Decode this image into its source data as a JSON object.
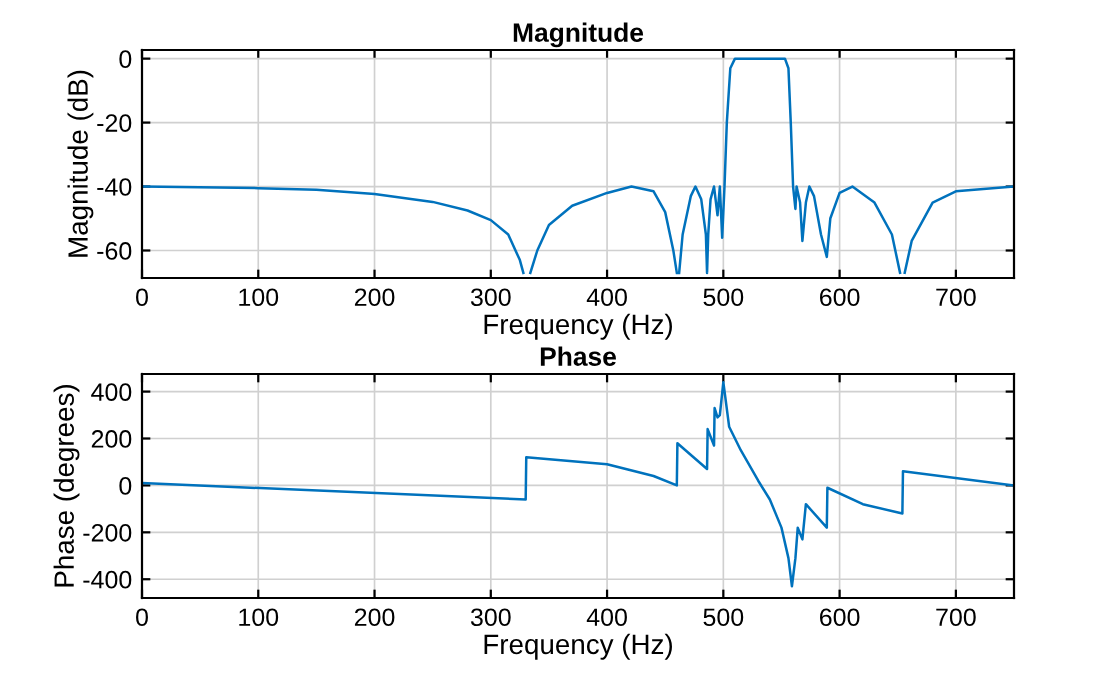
{
  "chart_data": [
    {
      "type": "line",
      "title": "Magnitude",
      "xlabel": "Frequency (Hz)",
      "ylabel": "Magnitude (dB)",
      "xlim": [
        0,
        750
      ],
      "ylim": [
        -68.6,
        2.7
      ],
      "xticks": [
        0,
        100,
        200,
        300,
        400,
        500,
        600,
        700
      ],
      "yticks": [
        -60,
        -40,
        -20,
        0
      ],
      "grid": true,
      "series": [
        {
          "color": "#0072bd",
          "x": [
            0,
            100,
            150,
            200,
            250,
            280,
            300,
            315,
            325,
            328,
            330,
            334,
            340,
            350,
            370,
            400,
            421,
            440,
            450,
            457,
            460,
            461,
            462,
            465,
            472,
            476,
            481,
            485,
            486,
            487,
            489,
            492,
            495,
            497,
            499,
            501,
            503,
            506,
            510,
            553,
            556,
            558,
            560,
            562,
            563,
            566,
            568,
            571,
            574,
            578,
            584,
            589,
            592,
            600,
            611,
            630,
            645,
            652,
            654,
            656,
            662,
            680,
            700,
            750
          ],
          "values": [
            -40,
            -40.5,
            -41,
            -42.3,
            -44.8,
            -47.5,
            -50.5,
            -55,
            -63,
            -67,
            null,
            -67,
            -60,
            -52,
            -46,
            -42,
            -40,
            -41.5,
            -48,
            -60,
            -67,
            null,
            -67,
            -55,
            -43,
            -40,
            -44,
            -55,
            -67,
            -55,
            -44,
            -40,
            -49,
            -40,
            -56,
            -40,
            -20,
            -3,
            0,
            0,
            -3,
            -20,
            -40,
            -47,
            -40,
            -45,
            -57,
            -45,
            -40,
            -43,
            -55,
            -62,
            -50,
            -42,
            -40,
            -45,
            -55,
            -67,
            null,
            -67,
            -57,
            -45,
            -41.5,
            -40
          ]
        }
      ]
    },
    {
      "type": "line",
      "title": "Phase",
      "xlabel": "Frequency (Hz)",
      "ylabel": "Phase (degrees)",
      "xlim": [
        0,
        750
      ],
      "ylim": [
        -480,
        475
      ],
      "xticks": [
        0,
        100,
        200,
        300,
        400,
        500,
        600,
        700
      ],
      "yticks": [
        -400,
        -200,
        0,
        200,
        400
      ],
      "grid": true,
      "series": [
        {
          "color": "#0072bd",
          "x": [
            0,
            330,
            330.5,
            400,
            440,
            460,
            460.5,
            486,
            486.5,
            492,
            492.5,
            495,
            497,
            500,
            505,
            515,
            530,
            540,
            550,
            556,
            559,
            562,
            564,
            568,
            571,
            589,
            589.5,
            620,
            654,
            654.5,
            750
          ],
          "values": [
            10,
            -60,
            120,
            90,
            40,
            0,
            180,
            70,
            240,
            170,
            330,
            290,
            300,
            440,
            250,
            150,
            20,
            -60,
            -180,
            -310,
            -430,
            -310,
            -180,
            -230,
            -80,
            -180,
            -10,
            -80,
            -120,
            60,
            0
          ]
        }
      ]
    }
  ]
}
